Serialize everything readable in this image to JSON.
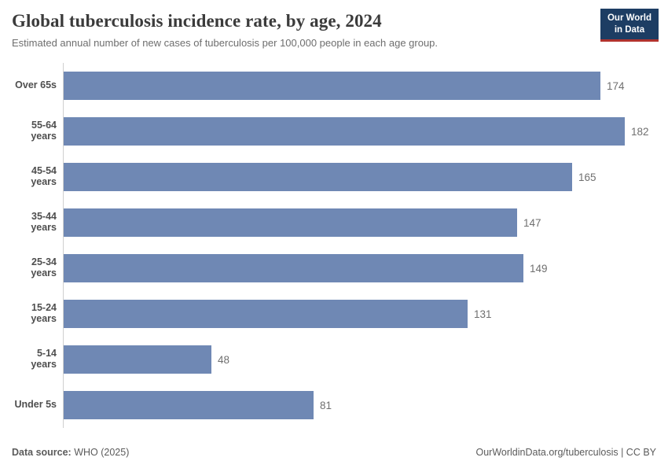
{
  "header": {
    "title": "Global tuberculosis incidence rate, by age, 2024",
    "subtitle": "Estimated annual number of new cases of tuberculosis per 100,000 people in each age group.",
    "logo": {
      "line1": "Our World",
      "line2": "in Data",
      "bg_color": "#1d3d63",
      "accent_color": "#b1332e"
    }
  },
  "chart_data": {
    "type": "bar",
    "orientation": "horizontal",
    "title": "Global tuberculosis incidence rate, by age, 2024",
    "categories": [
      "Over 65s",
      "55-64 years",
      "45-54 years",
      "35-44 years",
      "25-34 years",
      "15-24 years",
      "5-14 years",
      "Under 5s"
    ],
    "values": [
      174,
      182,
      165,
      147,
      149,
      131,
      48,
      81
    ],
    "xlabel": "",
    "ylabel": "",
    "xlim": [
      0,
      182
    ],
    "grid": false,
    "value_labels": true,
    "legend": "none",
    "bar_color": "#6f88b4",
    "axis_line_color": "#cfcfcf"
  },
  "footer": {
    "datasource_label": "Data source:",
    "datasource_value": "WHO (2025)",
    "attribution": "OurWorldinData.org/tuberculosis | CC BY"
  }
}
